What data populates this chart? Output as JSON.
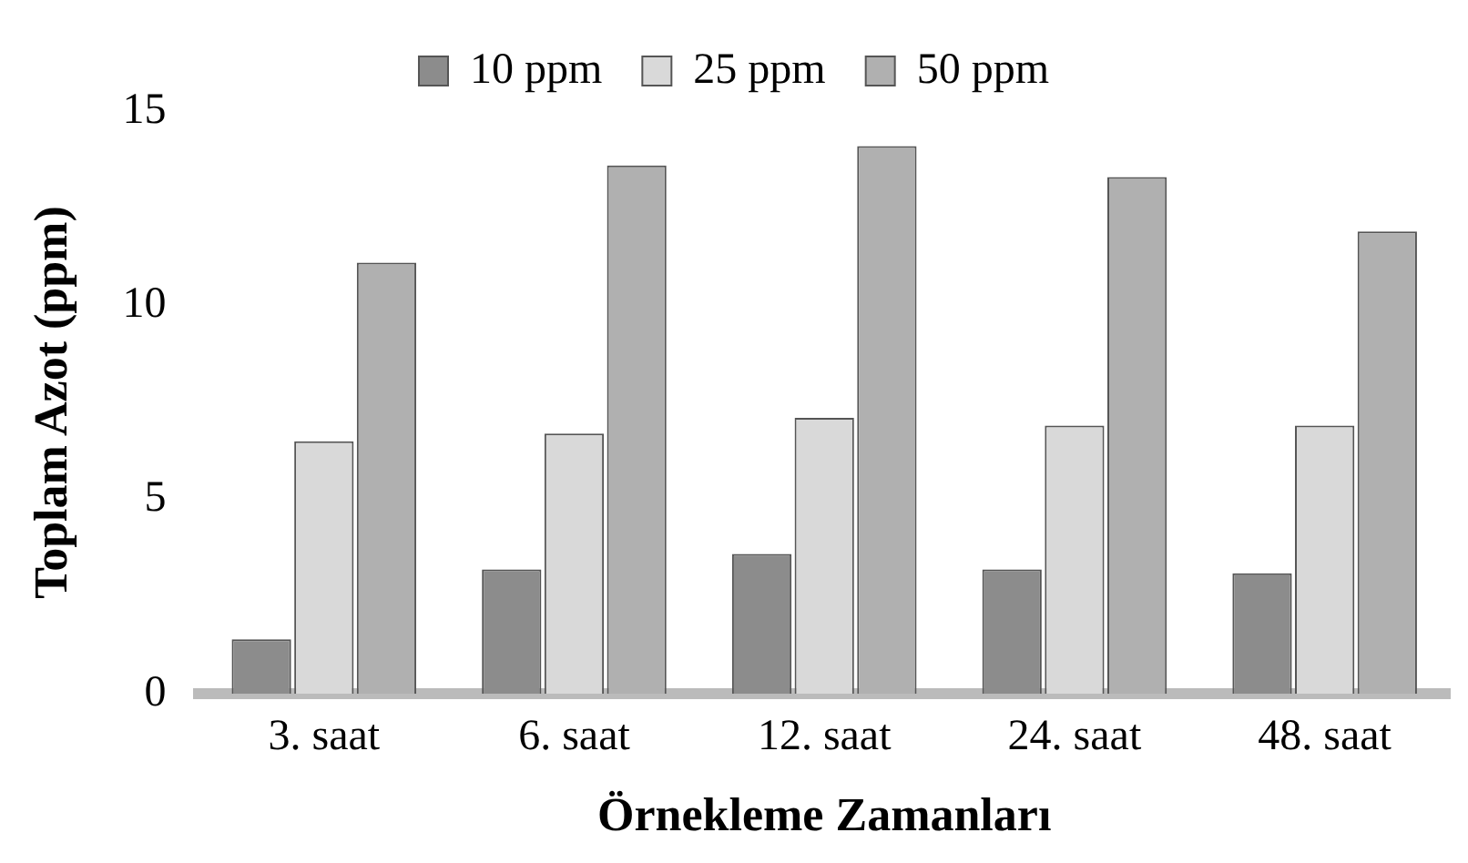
{
  "chart_data": {
    "type": "bar",
    "xlabel": "Örnekleme Zamanları",
    "ylabel": "Toplam Azot (ppm)",
    "categories": [
      "3. saat",
      "6. saat",
      "12. saat",
      "24. saat",
      "48. saat"
    ],
    "series": [
      {
        "name": "10 ppm",
        "color": "#8c8c8c",
        "values": [
          1.4,
          3.2,
          3.6,
          3.2,
          3.1
        ]
      },
      {
        "name": "25 ppm",
        "color": "#d9d9d9",
        "values": [
          6.5,
          6.7,
          7.1,
          6.9,
          6.9
        ]
      },
      {
        "name": "50 ppm",
        "color": "#b0b0b0",
        "values": [
          11.1,
          13.6,
          14.1,
          13.3,
          11.9
        ]
      }
    ],
    "ylim": [
      0,
      15
    ],
    "yticks": [
      0,
      5,
      10,
      15
    ],
    "grid": false,
    "legend": "top"
  }
}
